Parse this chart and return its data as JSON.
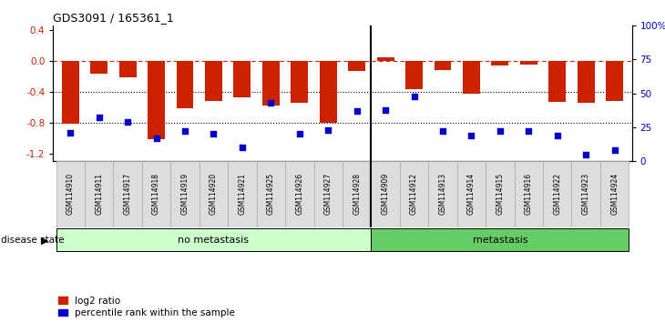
{
  "title": "GDS3091 / 165361_1",
  "samples": [
    "GSM114910",
    "GSM114911",
    "GSM114917",
    "GSM114918",
    "GSM114919",
    "GSM114920",
    "GSM114921",
    "GSM114925",
    "GSM114926",
    "GSM114927",
    "GSM114928",
    "GSM114909",
    "GSM114912",
    "GSM114913",
    "GSM114914",
    "GSM114915",
    "GSM114916",
    "GSM114922",
    "GSM114923",
    "GSM114924"
  ],
  "log2_ratio": [
    -0.82,
    -0.17,
    -0.22,
    -1.02,
    -0.62,
    -0.52,
    -0.48,
    -0.58,
    -0.55,
    -0.81,
    -0.13,
    0.04,
    -0.37,
    -0.12,
    -0.43,
    -0.07,
    -0.05,
    -0.53,
    -0.55,
    -0.52
  ],
  "percentile": [
    21,
    32,
    29,
    17,
    22,
    20,
    10,
    43,
    20,
    23,
    37,
    38,
    48,
    22,
    19,
    22,
    22,
    19,
    5,
    8
  ],
  "no_metastasis_count": 11,
  "metastasis_count": 9,
  "no_metastasis_color": "#ccffcc",
  "metastasis_color": "#66cc66",
  "bar_color": "#cc2200",
  "dot_color": "#0000cc",
  "dashed_line_color": "#cc2200",
  "dotted_line_color": "#000000",
  "ylim_left": [
    -1.3,
    0.45
  ],
  "yticks_left": [
    0.4,
    0.0,
    -0.4,
    -0.8,
    -1.2
  ],
  "yticks_right": [
    100,
    75,
    50,
    25,
    0
  ],
  "background_color": "#ffffff"
}
